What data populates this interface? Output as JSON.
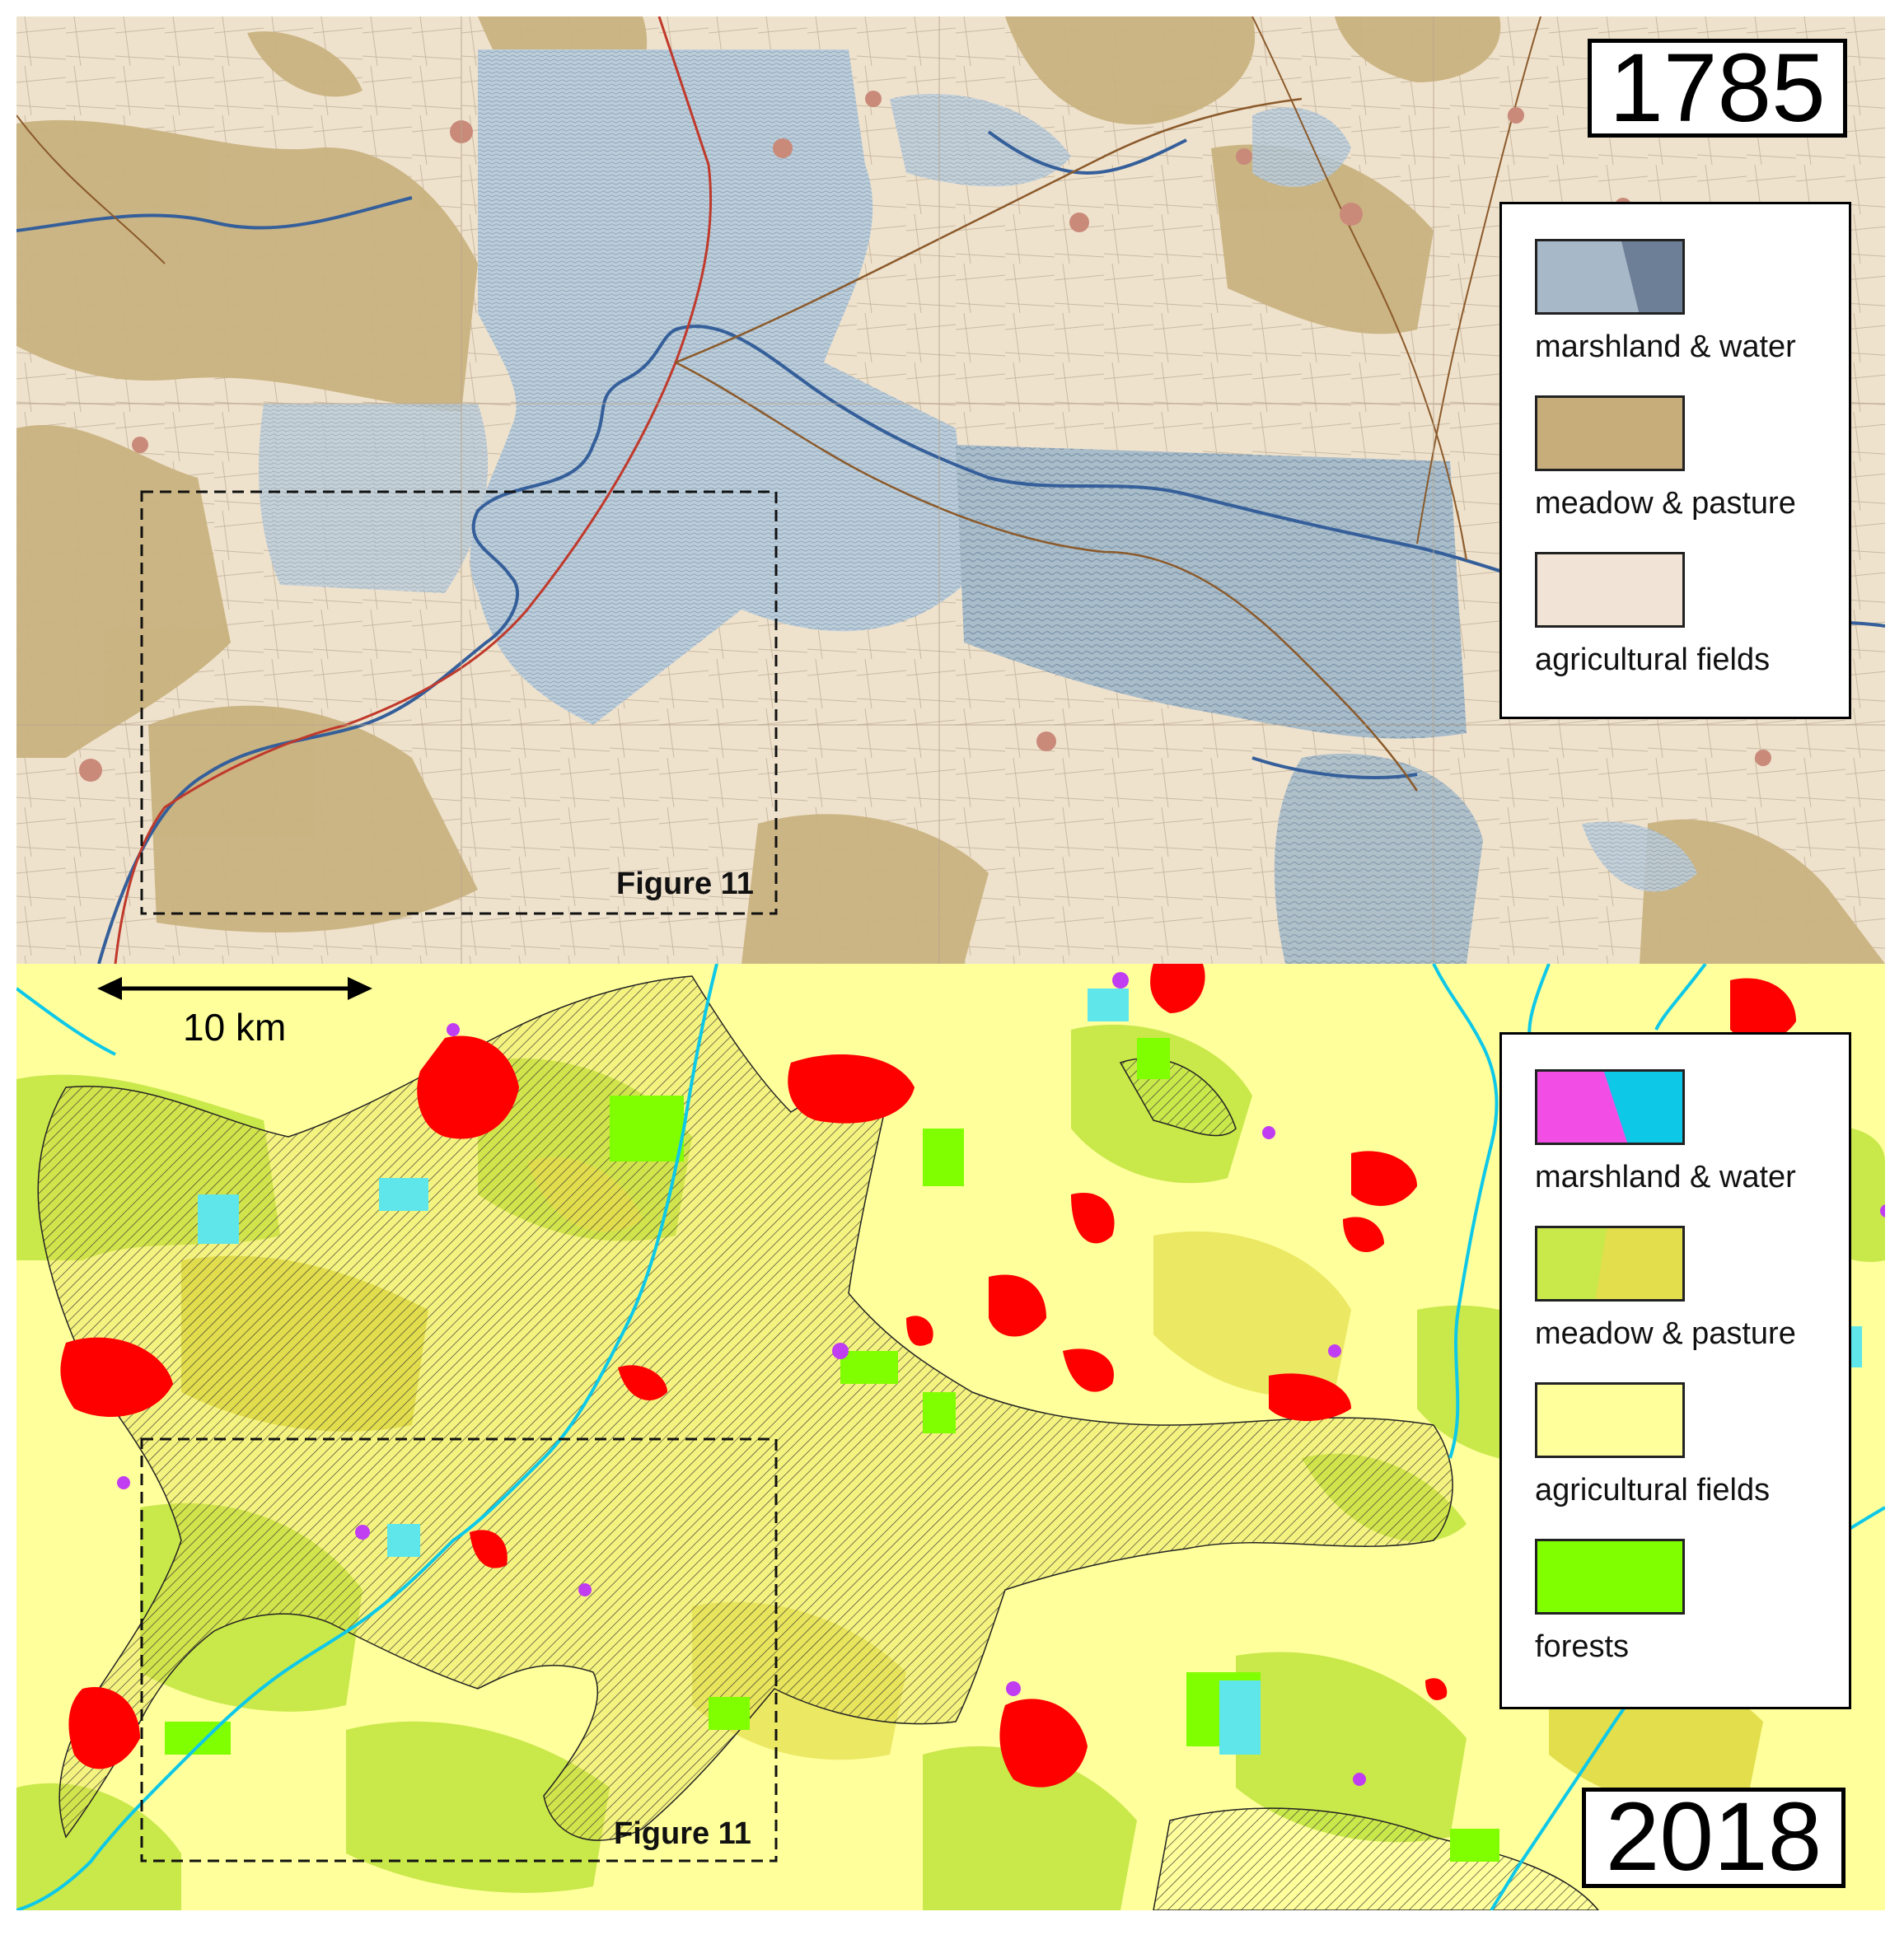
{
  "panels": {
    "top": {
      "year": "1785",
      "legend": [
        {
          "label": "marshland & water",
          "colors": [
            "#a7b8c8",
            "#6c7f96"
          ]
        },
        {
          "label": "meadow & pasture",
          "colors": [
            "#c6ad7a"
          ]
        },
        {
          "label": "agricultural fields",
          "colors": [
            "#f1e4d6"
          ]
        }
      ],
      "figure_label": "Figure 11",
      "colors": {
        "paper": "#efe3cf",
        "meadow": "#c9b27f",
        "marsh": "#b8cad8",
        "marsh_dark": "#9fb3c4",
        "river": "#355f9a",
        "road": "#c0392b",
        "road_brown": "#8b5a2b",
        "settlement": "#c98a7a"
      }
    },
    "bottom": {
      "year": "2018",
      "scale_label": "10 km",
      "legend": [
        {
          "label": "marshland & water",
          "colors": [
            "#f24ee6",
            "#0ec8e8"
          ]
        },
        {
          "label": "meadow & pasture",
          "colors": [
            "#c9e84a",
            "#e2de4c"
          ]
        },
        {
          "label": "agricultural fields",
          "colors": [
            "#ffff9c"
          ]
        },
        {
          "label": "forests",
          "colors": [
            "#80ff00"
          ]
        }
      ],
      "figure_label": "Figure 11",
      "colors": {
        "fields": "#ffff9c",
        "meadow": "#c9e84a",
        "pasture": "#e2de4c",
        "forest": "#80ff00",
        "urban": "#ff0000",
        "water": "#0ec8e8",
        "marsh": "#f24ee6",
        "hatch": "#000000"
      }
    }
  }
}
